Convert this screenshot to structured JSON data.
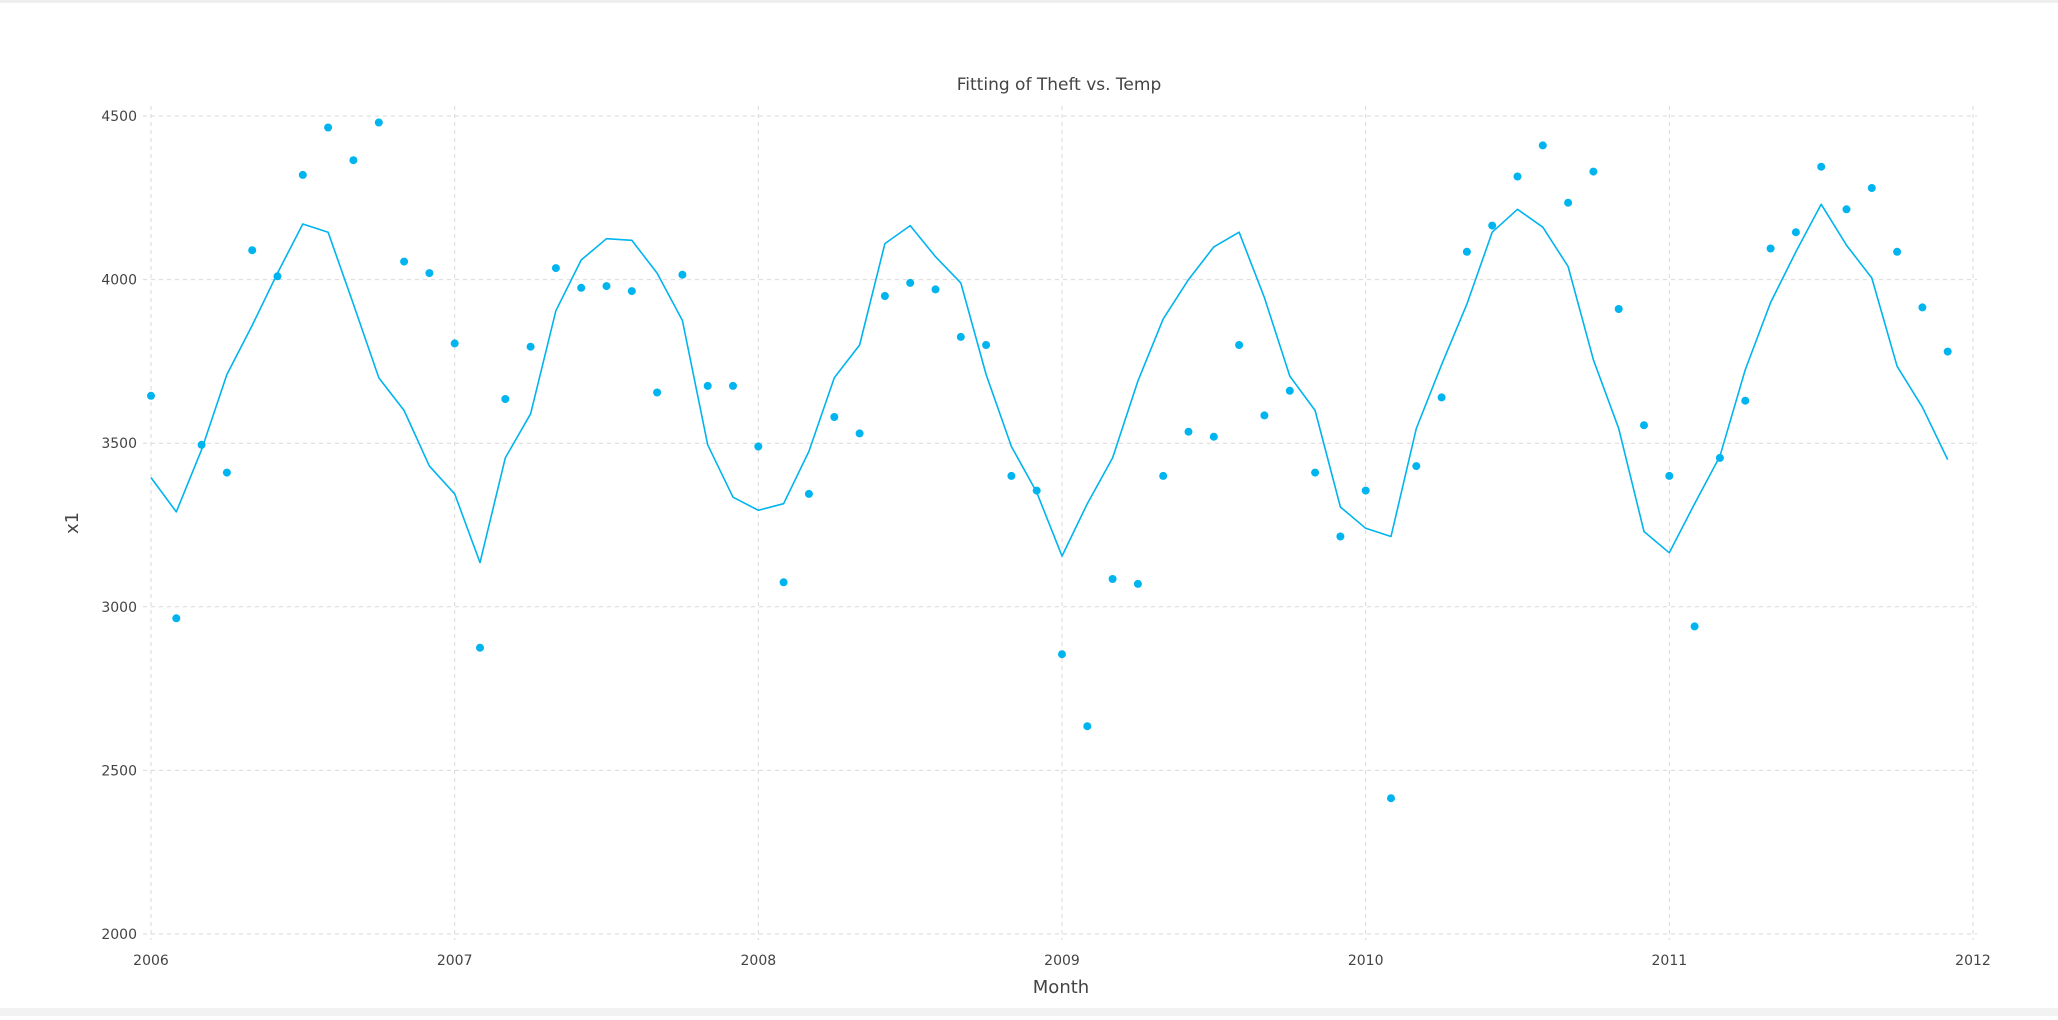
{
  "chart_data": {
    "type": "line",
    "title": "Fitting of Theft vs. Temp",
    "xlabel": "Month",
    "ylabel": "x1",
    "xlim": [
      "2006-01",
      "2012-01"
    ],
    "ylim": [
      2000,
      4500
    ],
    "x_ticks": [
      "2006",
      "2007",
      "2008",
      "2009",
      "2010",
      "2011",
      "2012"
    ],
    "y_ticks": [
      2000,
      2500,
      3000,
      3500,
      4000,
      4500
    ],
    "grid": true,
    "legend": "none",
    "colors": {
      "series": "#00b4ef",
      "grid": "#d9d9d9",
      "text": "#444444"
    },
    "series": [
      {
        "kind": "scatter",
        "x": [
          "2006-01",
          "2006-02",
          "2006-03",
          "2006-04",
          "2006-05",
          "2006-06",
          "2006-07",
          "2006-08",
          "2006-09",
          "2006-10",
          "2006-11",
          "2006-12",
          "2007-01",
          "2007-02",
          "2007-03",
          "2007-04",
          "2007-05",
          "2007-06",
          "2007-07",
          "2007-08",
          "2007-09",
          "2007-10",
          "2007-11",
          "2007-12",
          "2008-01",
          "2008-02",
          "2008-03",
          "2008-04",
          "2008-05",
          "2008-06",
          "2008-07",
          "2008-08",
          "2008-09",
          "2008-10",
          "2008-11",
          "2008-12",
          "2009-01",
          "2009-02",
          "2009-03",
          "2009-04",
          "2009-05",
          "2009-06",
          "2009-07",
          "2009-08",
          "2009-09",
          "2009-10",
          "2009-11",
          "2009-12",
          "2010-01",
          "2010-02",
          "2010-03",
          "2010-04",
          "2010-05",
          "2010-06",
          "2010-07",
          "2010-08",
          "2010-09",
          "2010-10",
          "2010-11",
          "2010-12",
          "2011-01",
          "2011-02",
          "2011-03",
          "2011-04",
          "2011-05",
          "2011-06",
          "2011-07",
          "2011-08",
          "2011-09",
          "2011-10",
          "2011-11",
          "2011-12"
        ],
        "values": [
          3645,
          2965,
          3495,
          3410,
          4090,
          4010,
          4320,
          4465,
          4365,
          4480,
          4055,
          4020,
          3805,
          2875,
          3635,
          3795,
          4035,
          3975,
          3980,
          3965,
          3655,
          4015,
          3675,
          3675,
          3490,
          3075,
          3345,
          3580,
          3530,
          3950,
          3990,
          3970,
          3825,
          3800,
          3400,
          3355,
          2855,
          2635,
          3085,
          3070,
          3400,
          3535,
          3520,
          3800,
          3585,
          3660,
          3410,
          3215,
          3355,
          2415,
          3430,
          3640,
          4085,
          4165,
          4315,
          4410,
          4235,
          4330,
          3910,
          3555,
          3400,
          2940,
          3455,
          3630,
          4095,
          4145,
          4345,
          4215,
          4280,
          4085,
          3915,
          3780
        ]
      },
      {
        "kind": "line",
        "x": [
          "2006-01",
          "2006-02",
          "2006-03",
          "2006-04",
          "2006-05",
          "2006-06",
          "2006-07",
          "2006-08",
          "2006-09",
          "2006-10",
          "2006-11",
          "2006-12",
          "2007-01",
          "2007-02",
          "2007-03",
          "2007-04",
          "2007-05",
          "2007-06",
          "2007-07",
          "2007-08",
          "2007-09",
          "2007-10",
          "2007-11",
          "2007-12",
          "2008-01",
          "2008-02",
          "2008-03",
          "2008-04",
          "2008-05",
          "2008-06",
          "2008-07",
          "2008-08",
          "2008-09",
          "2008-10",
          "2008-11",
          "2008-12",
          "2009-01",
          "2009-02",
          "2009-03",
          "2009-04",
          "2009-05",
          "2009-06",
          "2009-07",
          "2009-08",
          "2009-09",
          "2009-10",
          "2009-11",
          "2009-12",
          "2010-01",
          "2010-02",
          "2010-03",
          "2010-04",
          "2010-05",
          "2010-06",
          "2010-07",
          "2010-08",
          "2010-09",
          "2010-10",
          "2010-11",
          "2010-12",
          "2011-01",
          "2011-02",
          "2011-03",
          "2011-04",
          "2011-05",
          "2011-06",
          "2011-07",
          "2011-08",
          "2011-09",
          "2011-10",
          "2011-11",
          "2011-12"
        ],
        "values": [
          3395,
          3290,
          3480,
          3710,
          3860,
          4020,
          4170,
          4145,
          3925,
          3700,
          3600,
          3430,
          3345,
          3135,
          3455,
          3590,
          3905,
          4060,
          4125,
          4120,
          4020,
          3875,
          3495,
          3335,
          3295,
          3315,
          3475,
          3700,
          3800,
          4110,
          4165,
          4070,
          3990,
          3710,
          3490,
          3350,
          3155,
          3315,
          3455,
          3690,
          3880,
          4000,
          4100,
          4145,
          3945,
          3705,
          3600,
          3305,
          3240,
          3215,
          3545,
          3740,
          3925,
          4145,
          4215,
          4160,
          4040,
          3755,
          3545,
          3230,
          3165,
          3315,
          3460,
          3725,
          3930,
          4085,
          4230,
          4105,
          4005,
          3735,
          3610,
          3450
        ]
      }
    ]
  }
}
